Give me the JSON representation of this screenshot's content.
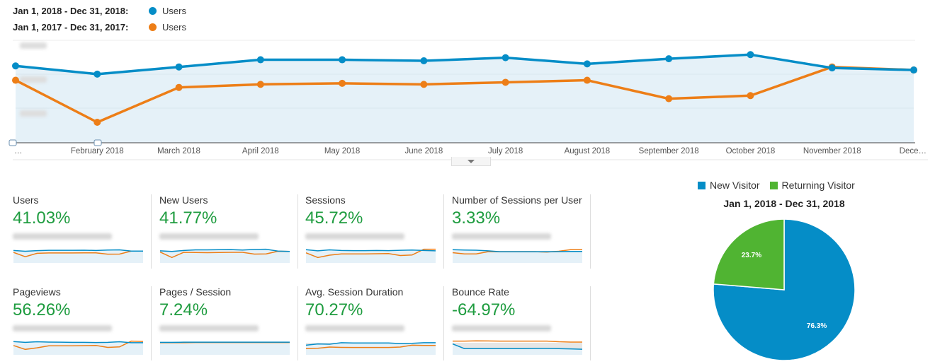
{
  "legend": [
    {
      "range": "Jan 1, 2018 - Dec 31, 2018:",
      "metric": "Users",
      "color": "#058dc7"
    },
    {
      "range": "Jan 1, 2017 - Dec 31, 2017:",
      "metric": "Users",
      "color": "#ed7e17"
    }
  ],
  "chart_data": [
    {
      "type": "line",
      "title": "",
      "categories": [
        "…",
        "February 2018",
        "March 2018",
        "April 2018",
        "May 2018",
        "June 2018",
        "July 2018",
        "August 2018",
        "September 2018",
        "October 2018",
        "November 2018",
        "Dece…"
      ],
      "ylim": [
        0,
        100
      ],
      "y_tick_labels_obscured": true,
      "grid": true,
      "series": [
        {
          "name": "Users",
          "range": "Jan 1, 2018 - Dec 31, 2018",
          "color": "#058dc7",
          "area": true,
          "values": [
            75,
            67,
            74,
            81,
            81,
            80,
            83,
            77,
            82,
            86,
            73,
            71
          ]
        },
        {
          "name": "Users",
          "range": "Jan 1, 2017 - Dec 31, 2017",
          "color": "#ed7e17",
          "values": [
            61,
            20,
            54,
            57,
            58,
            57,
            59,
            61,
            43,
            46,
            74,
            71
          ]
        }
      ]
    },
    {
      "type": "pie",
      "title": "Jan 1, 2018 - Dec 31, 2018",
      "legend_position": "top",
      "slices": [
        {
          "label": "New Visitor",
          "value": 76.3,
          "display": "76.3%",
          "color": "#058dc7"
        },
        {
          "label": "Returning Visitor",
          "value": 23.7,
          "display": "23.7%",
          "color": "#50b432"
        }
      ]
    }
  ],
  "scorecards": [
    {
      "title": "Users",
      "change": "41.03%",
      "current": [
        80,
        75,
        79,
        81,
        81,
        81,
        82,
        80,
        83,
        84,
        76,
        76
      ],
      "previous": [
        68,
        40,
        62,
        64,
        64,
        64,
        65,
        65,
        56,
        57,
        76,
        76
      ]
    },
    {
      "title": "New Users",
      "change": "41.77%",
      "current": [
        78,
        74,
        80,
        84,
        84,
        85,
        86,
        83,
        87,
        88,
        76,
        74
      ],
      "previous": [
        70,
        35,
        68,
        67,
        66,
        67,
        68,
        68,
        57,
        58,
        75,
        74
      ]
    },
    {
      "title": "Sessions",
      "change": "45.72%",
      "current": [
        85,
        78,
        84,
        80,
        79,
        79,
        80,
        79,
        81,
        83,
        80,
        78
      ],
      "previous": [
        65,
        35,
        50,
        58,
        58,
        58,
        59,
        60,
        48,
        51,
        88,
        88
      ]
    },
    {
      "title": "Number of Sessions per User",
      "change": "3.33%",
      "current": [
        85,
        83,
        82,
        78,
        72,
        72,
        72,
        72,
        72,
        73,
        74,
        74
      ],
      "previous": [
        66,
        58,
        58,
        72,
        72,
        72,
        72,
        72,
        70,
        75,
        85,
        85
      ]
    },
    {
      "title": "Pageviews",
      "change": "56.26%",
      "current": [
        85,
        80,
        84,
        82,
        81,
        80,
        80,
        79,
        80,
        84,
        78,
        78
      ],
      "previous": [
        60,
        35,
        45,
        58,
        58,
        58,
        59,
        60,
        48,
        51,
        88,
        86
      ]
    },
    {
      "title": "Pages / Session",
      "change": "7.24%",
      "current": [
        80,
        80,
        81,
        81,
        81,
        81,
        81,
        81,
        81,
        81,
        81,
        81
      ],
      "previous": [
        78,
        78,
        78,
        79,
        79,
        79,
        79,
        79,
        79,
        79,
        79,
        79
      ]
    },
    {
      "title": "Avg. Session Duration",
      "change": "70.27%",
      "current": [
        62,
        70,
        68,
        78,
        76,
        76,
        76,
        76,
        72,
        74,
        78,
        78
      ],
      "previous": [
        40,
        42,
        50,
        48,
        47,
        47,
        47,
        47,
        50,
        62,
        60,
        60
      ]
    },
    {
      "title": "Bounce Rate",
      "change": "-64.97%",
      "current": [
        70,
        40,
        40,
        40,
        40,
        40,
        40,
        41,
        41,
        40,
        38,
        36
      ],
      "previous": [
        88,
        88,
        90,
        89,
        88,
        88,
        88,
        88,
        88,
        84,
        82,
        82
      ]
    }
  ]
}
